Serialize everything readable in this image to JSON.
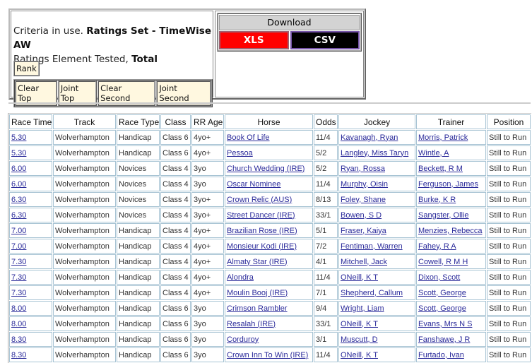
{
  "criteria": {
    "prefix": "Criteria in use.",
    "ratings_set": "Ratings Set - TimeWise AW",
    "element_label": "Ratings Element Tested,",
    "element_value": "Total"
  },
  "buttons": {
    "rank": "Rank",
    "clear_top": "Clear Top",
    "joint_top": "Joint Top",
    "clear_second": "Clear Second",
    "joint_second": "Joint Second"
  },
  "download": {
    "title": "Download",
    "xls": "XLS",
    "csv": "CSV"
  },
  "table": {
    "headers": [
      "Race Time",
      "Track",
      "Race Type",
      "Class",
      "RR Age",
      "Horse",
      "Odds",
      "Jockey",
      "Trainer",
      "Position"
    ],
    "rows": [
      [
        "5.30",
        "Wolverhampton",
        "Handicap",
        "Class 6",
        "4yo+",
        "Book Of Life",
        "11/4",
        "Kavanagh, Ryan",
        "Morris, Patrick",
        "Still to Run"
      ],
      [
        "5.30",
        "Wolverhampton",
        "Handicap",
        "Class 6",
        "4yo+",
        "Pessoa",
        "5/2",
        "Langley, Miss Taryn",
        "Wintle, A",
        "Still to Run"
      ],
      [
        "6.00",
        "Wolverhampton",
        "Novices",
        "Class 4",
        "3yo",
        "Church Wedding (IRE)",
        "5/2",
        "Ryan, Rossa",
        "Beckett, R M",
        "Still to Run"
      ],
      [
        "6.00",
        "Wolverhampton",
        "Novices",
        "Class 4",
        "3yo",
        "Oscar Nominee",
        "11/4",
        "Murphy, Oisin",
        "Ferguson, James",
        "Still to Run"
      ],
      [
        "6.30",
        "Wolverhampton",
        "Novices",
        "Class 4",
        "3yo+",
        "Crown Relic (AUS)",
        "8/13",
        "Foley, Shane",
        "Burke, K R",
        "Still to Run"
      ],
      [
        "6.30",
        "Wolverhampton",
        "Novices",
        "Class 4",
        "3yo+",
        "Street Dancer (IRE)",
        "33/1",
        "Bowen, S D",
        "Sangster, Ollie",
        "Still to Run"
      ],
      [
        "7.00",
        "Wolverhampton",
        "Handicap",
        "Class 4",
        "4yo+",
        "Brazilian Rose (IRE)",
        "5/1",
        "Fraser, Kaiya",
        "Menzies, Rebecca",
        "Still to Run"
      ],
      [
        "7.00",
        "Wolverhampton",
        "Handicap",
        "Class 4",
        "4yo+",
        "Monsieur Kodi (IRE)",
        "7/2",
        "Fentiman, Warren",
        "Fahey, R A",
        "Still to Run"
      ],
      [
        "7.30",
        "Wolverhampton",
        "Handicap",
        "Class 4",
        "4yo+",
        "Almaty Star (IRE)",
        "4/1",
        "Mitchell, Jack",
        "Cowell, R M H",
        "Still to Run"
      ],
      [
        "7.30",
        "Wolverhampton",
        "Handicap",
        "Class 4",
        "4yo+",
        "Alondra",
        "11/4",
        "ONeill, K T",
        "Dixon, Scott",
        "Still to Run"
      ],
      [
        "7.30",
        "Wolverhampton",
        "Handicap",
        "Class 4",
        "4yo+",
        "Moulin Booj (IRE)",
        "7/1",
        "Shepherd, Callum",
        "Scott, George",
        "Still to Run"
      ],
      [
        "8.00",
        "Wolverhampton",
        "Handicap",
        "Class 6",
        "3yo",
        "Crimson Rambler",
        "9/4",
        "Wright, Liam",
        "Scott, George",
        "Still to Run"
      ],
      [
        "8.00",
        "Wolverhampton",
        "Handicap",
        "Class 6",
        "3yo",
        "Resalah (IRE)",
        "33/1",
        "ONeill, K T",
        "Evans, Mrs N S",
        "Still to Run"
      ],
      [
        "8.30",
        "Wolverhampton",
        "Handicap",
        "Class 6",
        "3yo",
        "Corduroy",
        "3/1",
        "Muscutt, D",
        "Fanshawe, J R",
        "Still to Run"
      ],
      [
        "8.30",
        "Wolverhampton",
        "Handicap",
        "Class 6",
        "3yo",
        "Crown Inn To Win (IRE)",
        "11/4",
        "ONeill, K T",
        "Furtado, Ivan",
        "Still to Run"
      ]
    ]
  }
}
